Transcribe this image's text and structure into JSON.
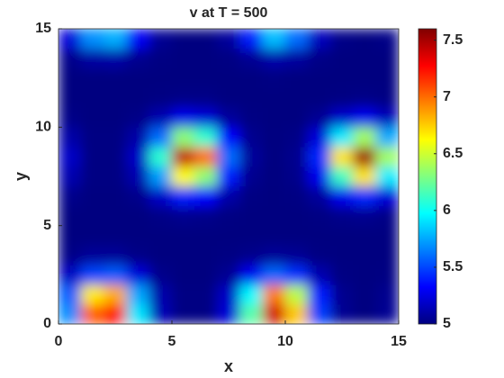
{
  "chart_data": {
    "type": "heatmap",
    "title": "v at T = 500",
    "x_label": "x",
    "y_label": "y",
    "colormap": "jet",
    "clim": [
      5,
      7.6
    ],
    "x": [
      0.5,
      1.5,
      2.5,
      3.5,
      4.5,
      5.5,
      6.5,
      7.5,
      8.5,
      9.5,
      10.5,
      11.5,
      12.5,
      13.5,
      14.5
    ],
    "y": [
      0.5,
      1.5,
      2.5,
      3.5,
      4.5,
      5.5,
      6.5,
      7.5,
      8.5,
      9.5,
      10.5,
      11.5,
      12.5,
      13.5,
      14.5
    ],
    "z": [
      [
        5.68,
        7.04,
        7.25,
        5.91,
        5.14,
        5.01,
        5.01,
        5.22,
        6.19,
        7.39,
        6.77,
        5.48,
        5.05,
        5.0,
        5.05
      ],
      [
        5.56,
        6.67,
        6.84,
        5.75,
        5.11,
        5.01,
        5.01,
        5.18,
        5.97,
        6.96,
        6.45,
        5.4,
        5.04,
        5.0,
        5.04
      ],
      [
        5.17,
        5.5,
        5.56,
        5.23,
        5.03,
        5.0,
        5.0,
        5.05,
        5.29,
        5.59,
        5.44,
        5.12,
        5.01,
        5.0,
        5.01
      ],
      [
        5.02,
        5.06,
        5.06,
        5.02,
        5.0,
        5.0,
        5.0,
        5.01,
        5.03,
        5.06,
        5.05,
        5.01,
        5.0,
        5.0,
        5.0
      ],
      [
        5.0,
        5.0,
        5.0,
        5.0,
        5.0,
        5.0,
        5.0,
        5.0,
        5.0,
        5.0,
        5.0,
        5.0,
        5.0,
        5.0,
        5.0
      ],
      [
        5.0,
        5.0,
        5.0,
        5.0,
        5.02,
        5.04,
        5.03,
        5.01,
        5.0,
        5.0,
        5.0,
        5.01,
        5.03,
        5.04,
        5.02
      ],
      [
        5.03,
        5.0,
        5.0,
        5.03,
        5.18,
        5.4,
        5.33,
        5.1,
        5.01,
        5.0,
        5.01,
        5.07,
        5.28,
        5.42,
        5.23
      ],
      [
        5.12,
        5.01,
        5.01,
        5.12,
        5.73,
        6.63,
        6.33,
        5.4,
        5.04,
        5.0,
        5.03,
        5.28,
        6.13,
        6.69,
        5.93
      ],
      [
        5.18,
        5.01,
        5.01,
        5.18,
        6.09,
        7.43,
        6.99,
        5.6,
        5.07,
        5.0,
        5.04,
        5.42,
        6.69,
        7.52,
        6.39
      ],
      [
        5.1,
        5.01,
        5.01,
        5.1,
        5.6,
        6.33,
        6.09,
        5.33,
        5.04,
        5.0,
        5.02,
        5.23,
        5.93,
        6.39,
        5.76
      ],
      [
        5.02,
        5.0,
        5.0,
        5.02,
        5.12,
        5.27,
        5.22,
        5.07,
        5.01,
        5.0,
        5.0,
        5.05,
        5.19,
        5.28,
        5.15
      ],
      [
        5.0,
        5.0,
        5.0,
        5.0,
        5.01,
        5.02,
        5.02,
        5.0,
        5.0,
        5.0,
        5.0,
        5.0,
        5.01,
        5.02,
        5.01
      ],
      [
        5.0,
        5.0,
        5.0,
        5.0,
        5.0,
        5.0,
        5.0,
        5.0,
        5.0,
        5.01,
        5.0,
        5.0,
        5.0,
        5.0,
        5.0
      ],
      [
        5.03,
        5.09,
        5.1,
        5.04,
        5.01,
        5.0,
        5.0,
        5.01,
        5.05,
        5.11,
        5.08,
        5.02,
        5.0,
        5.0,
        5.0
      ],
      [
        5.23,
        5.69,
        5.77,
        5.31,
        5.05,
        5.0,
        5.0,
        5.07,
        5.4,
        5.81,
        5.6,
        5.16,
        5.02,
        5.0,
        5.02
      ]
    ],
    "xlim": [
      0,
      15
    ],
    "ylim": [
      0,
      15
    ],
    "xticks": [
      0,
      5,
      10,
      15
    ],
    "yticks": [
      0,
      5,
      10,
      15
    ],
    "colorbar_ticks": [
      5,
      5.5,
      6,
      6.5,
      7,
      7.5
    ]
  }
}
